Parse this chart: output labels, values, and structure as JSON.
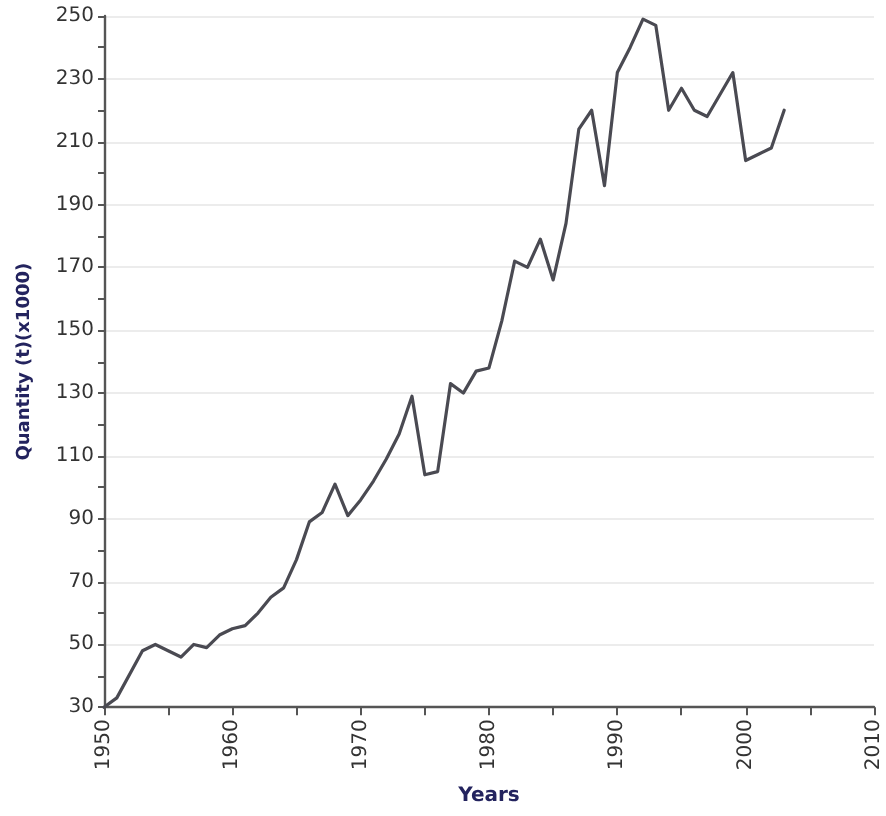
{
  "chart_data": {
    "type": "line",
    "xlabel": "Years",
    "ylabel": "Quantity (t)(x1000)",
    "x": [
      1950,
      1951,
      1953,
      1954,
      1956,
      1957,
      1958,
      1959,
      1960,
      1961,
      1962,
      1963,
      1964,
      1965,
      1966,
      1967,
      1968,
      1969,
      1970,
      1971,
      1972,
      1973,
      1974,
      1975,
      1976,
      1977,
      1978,
      1979,
      1980,
      1981,
      1982,
      1983,
      1984,
      1985,
      1986,
      1987,
      1988,
      1989,
      1990,
      1991,
      1992,
      1993,
      1994,
      1995,
      1996,
      1997,
      1998,
      1999,
      2000,
      2001,
      2002,
      2003
    ],
    "series": [
      {
        "color": "#4a4a52",
        "values": [
          30,
          33,
          48,
          50,
          46,
          50,
          49,
          53,
          55,
          56,
          60,
          65,
          68,
          77,
          89,
          92,
          101,
          91,
          96,
          102,
          109,
          117,
          129,
          104,
          105,
          133,
          130,
          137,
          138,
          153,
          172,
          170,
          179,
          166,
          184,
          214,
          220,
          196,
          232,
          240,
          249,
          247,
          220,
          227,
          220,
          218,
          225,
          232,
          204,
          206,
          208,
          220
        ]
      }
    ],
    "xlim": [
      1950,
      2010
    ],
    "xticks": [
      1950,
      {
        "value": 1955,
        "label": null
      },
      1960,
      {
        "value": 1965,
        "label": null
      },
      1970,
      {
        "value": 1975,
        "label": null
      },
      1980,
      {
        "value": 1985,
        "label": null
      },
      1990,
      {
        "value": 1995,
        "label": null
      },
      2000,
      {
        "value": 2005,
        "label": null
      },
      2010
    ],
    "ylim": [
      30,
      250
    ],
    "yticks": [
      30,
      {
        "value": 40,
        "label": null
      },
      50,
      {
        "value": 60,
        "label": null
      },
      70,
      {
        "value": 80,
        "label": null
      },
      90,
      {
        "value": 100,
        "label": null
      },
      110,
      {
        "value": 120,
        "label": null
      },
      130,
      {
        "value": 140,
        "label": null
      },
      150,
      {
        "value": 160,
        "label": null
      },
      170,
      {
        "value": 180,
        "label": null
      },
      190,
      {
        "value": 200,
        "label": null
      },
      210,
      {
        "value": 220,
        "label": null
      },
      230,
      {
        "value": 240,
        "label": null
      },
      250
    ],
    "grid": "y",
    "marker": "none",
    "line_style": "solid"
  }
}
